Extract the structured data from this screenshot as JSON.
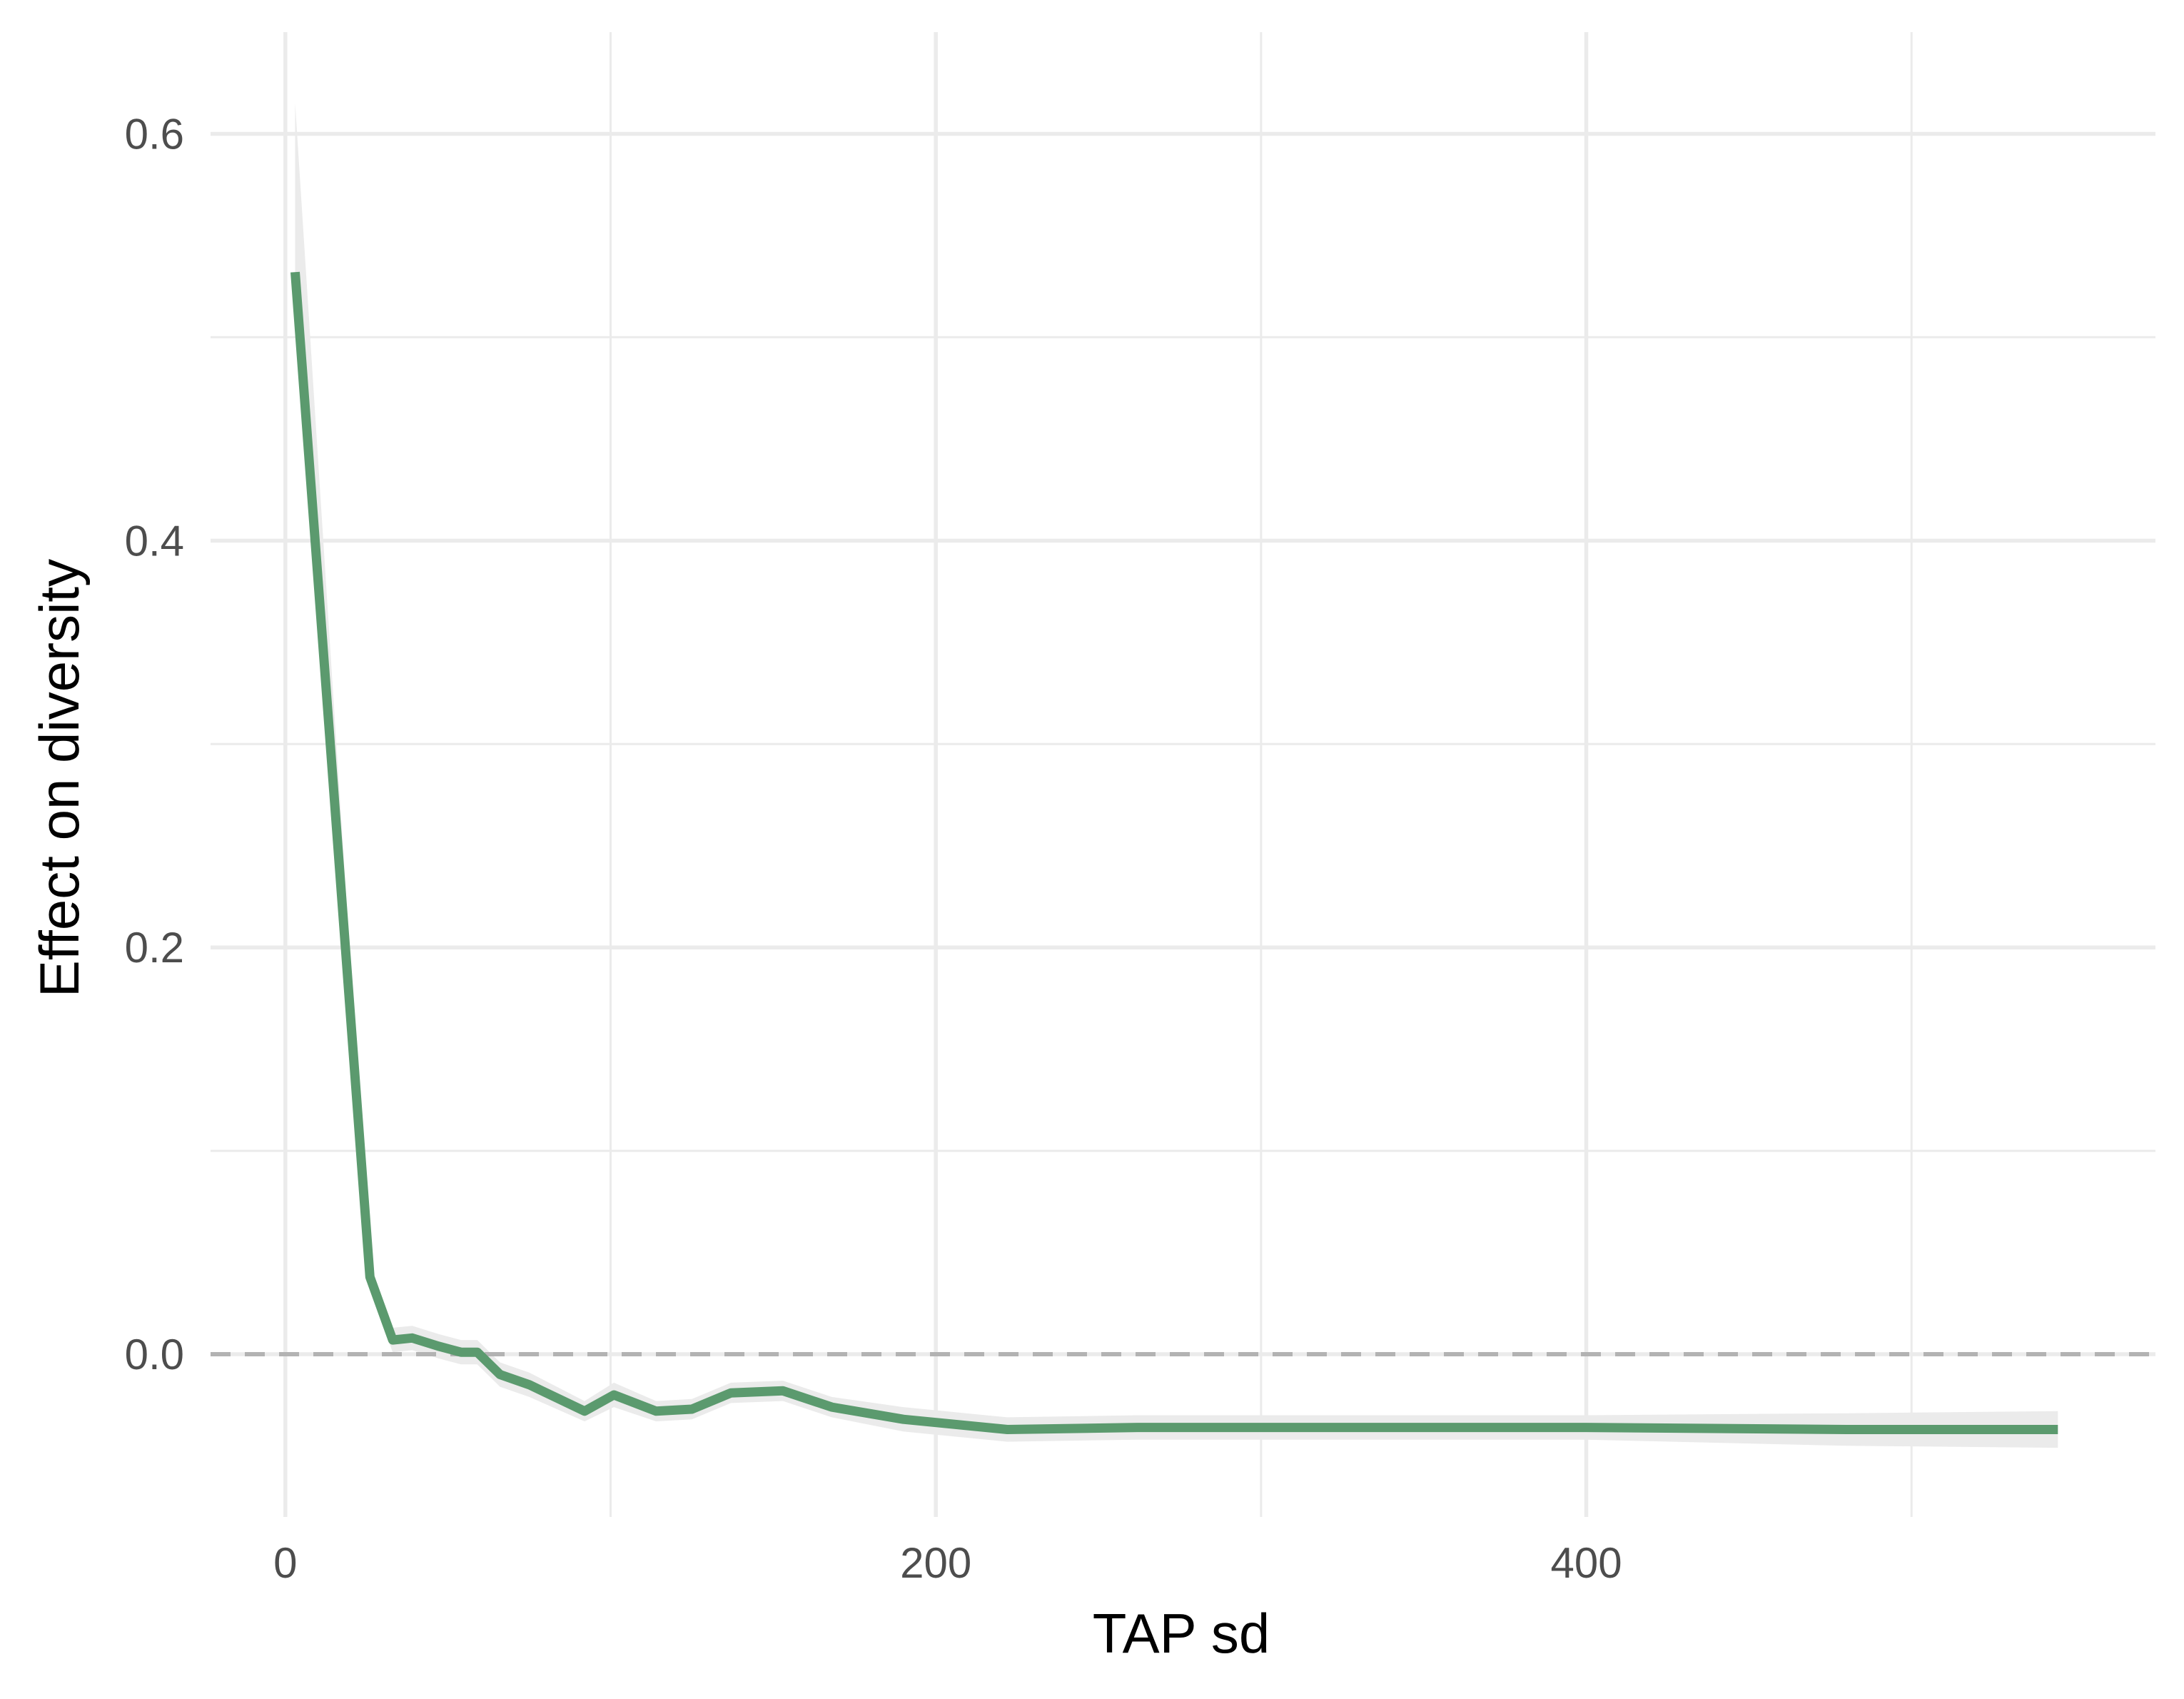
{
  "chart_data": {
    "type": "line",
    "title": "",
    "xlabel": "TAP sd",
    "ylabel": "Effect on diversity",
    "xlim": [
      -23,
      575
    ],
    "ylim": [
      -0.08,
      0.65
    ],
    "x_ticks": [
      {
        "value": 0,
        "label": "0"
      },
      {
        "value": 200,
        "label": "200"
      },
      {
        "value": 400,
        "label": "400"
      }
    ],
    "x_minor_ticks": [
      100,
      300,
      500
    ],
    "y_ticks": [
      {
        "value": 0.0,
        "label": "0.0"
      },
      {
        "value": 0.2,
        "label": "0.2"
      },
      {
        "value": 0.4,
        "label": "0.4"
      },
      {
        "value": 0.6,
        "label": "0.6"
      }
    ],
    "y_minor_ticks": [
      0.1,
      0.3,
      0.5
    ],
    "grid": true,
    "legend": "none",
    "reference_line": {
      "y": 0,
      "style": "dashed",
      "color": "#b3b3b3"
    },
    "colors": {
      "line": "#5b9a6e",
      "ribbon": "#ebebeb"
    },
    "series": [
      {
        "x": [
          3,
          26,
          33,
          39,
          47,
          54,
          59,
          66,
          75,
          92,
          101,
          114,
          125,
          137,
          153,
          168,
          190,
          222,
          262,
          320,
          400,
          480,
          545
        ],
        "values": [
          0.532,
          0.038,
          0.007,
          0.008,
          0.004,
          0.001,
          0.001,
          -0.01,
          -0.015,
          -0.028,
          -0.02,
          -0.028,
          -0.027,
          -0.019,
          -0.018,
          -0.026,
          -0.032,
          -0.037,
          -0.036,
          -0.036,
          -0.036,
          -0.037,
          -0.037
        ],
        "lower": [
          0.515,
          0.032,
          0.001,
          0.002,
          -0.002,
          -0.005,
          -0.005,
          -0.016,
          -0.021,
          -0.033,
          -0.026,
          -0.033,
          -0.032,
          -0.024,
          -0.023,
          -0.031,
          -0.038,
          -0.043,
          -0.042,
          -0.042,
          -0.042,
          -0.045,
          -0.046
        ],
        "upper": [
          0.615,
          0.044,
          0.013,
          0.014,
          0.01,
          0.007,
          0.007,
          -0.004,
          -0.009,
          -0.023,
          -0.014,
          -0.023,
          -0.022,
          -0.014,
          -0.013,
          -0.021,
          -0.026,
          -0.031,
          -0.03,
          -0.03,
          -0.03,
          -0.029,
          -0.028
        ]
      }
    ]
  }
}
